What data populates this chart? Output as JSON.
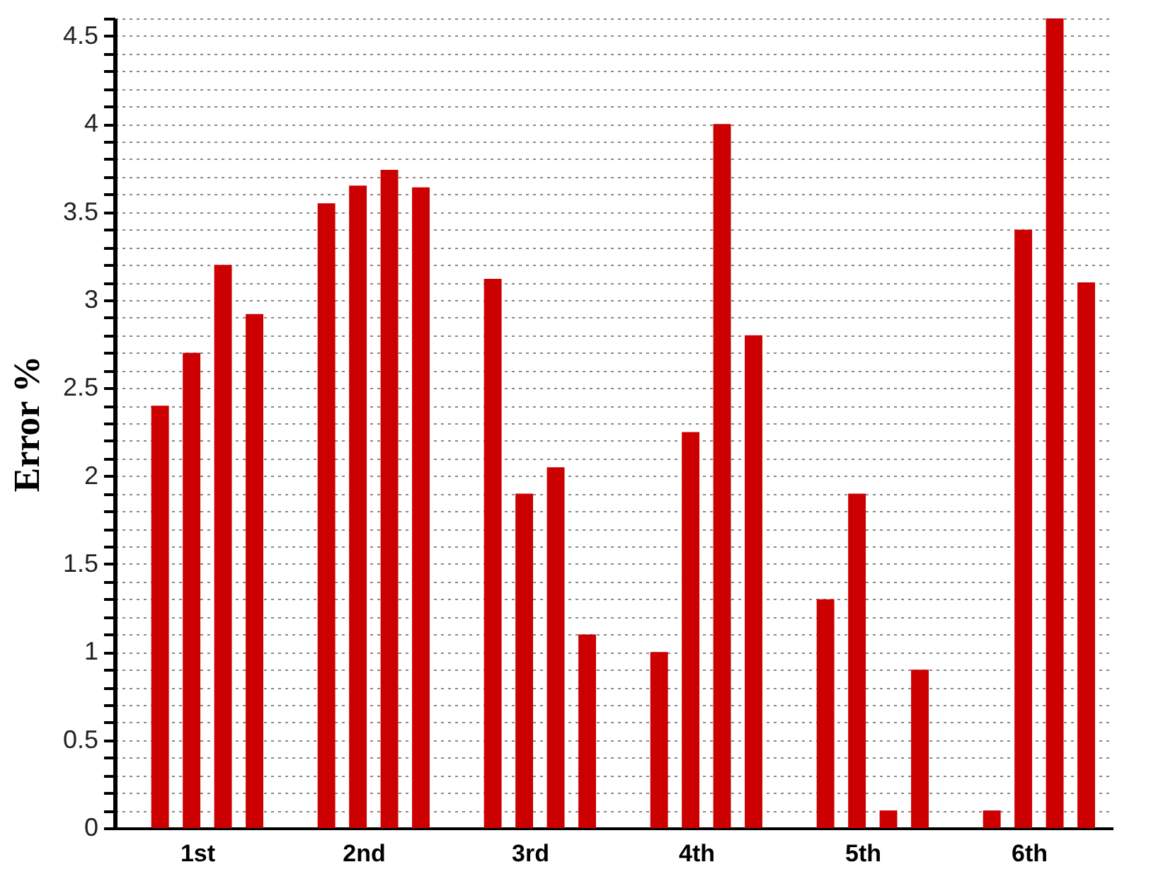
{
  "chart_data": {
    "type": "bar",
    "ylabel": "Error %",
    "categories": [
      "1st",
      "2nd",
      "3rd",
      "4th",
      "5th",
      "6th"
    ],
    "series": [
      {
        "color": "#cc0000",
        "values": [
          2.4,
          3.55,
          3.12,
          1.0,
          1.3,
          0.1
        ]
      },
      {
        "color": "#cc0000",
        "values": [
          2.7,
          3.65,
          1.9,
          2.25,
          1.9,
          3.4
        ]
      },
      {
        "color": "#cc0000",
        "values": [
          3.2,
          3.74,
          2.05,
          4.0,
          0.1,
          4.6
        ]
      },
      {
        "color": "#cc0000",
        "values": [
          2.92,
          3.64,
          1.1,
          2.8,
          0.9,
          3.1
        ]
      }
    ],
    "ylim": [
      0,
      4.6
    ],
    "yticks": [
      0,
      {
        "value": 0.1,
        "label": null
      },
      {
        "value": 0.2,
        "label": null
      },
      {
        "value": 0.3,
        "label": null
      },
      {
        "value": 0.4,
        "label": null
      },
      0.5,
      {
        "value": 0.6,
        "label": null
      },
      {
        "value": 0.7,
        "label": null
      },
      {
        "value": 0.8,
        "label": null
      },
      {
        "value": 0.9,
        "label": null
      },
      1,
      {
        "value": 1.1,
        "label": null
      },
      {
        "value": 1.2,
        "label": null
      },
      {
        "value": 1.3,
        "label": null
      },
      {
        "value": 1.4,
        "label": null
      },
      1.5,
      {
        "value": 1.6,
        "label": null
      },
      {
        "value": 1.7,
        "label": null
      },
      {
        "value": 1.8,
        "label": null
      },
      {
        "value": 1.9,
        "label": null
      },
      2,
      {
        "value": 2.1,
        "label": null
      },
      {
        "value": 2.2,
        "label": null
      },
      {
        "value": 2.3,
        "label": null
      },
      {
        "value": 2.4,
        "label": null
      },
      2.5,
      {
        "value": 2.6,
        "label": null
      },
      {
        "value": 2.7,
        "label": null
      },
      {
        "value": 2.8,
        "label": null
      },
      {
        "value": 2.9,
        "label": null
      },
      3,
      {
        "value": 3.1,
        "label": null
      },
      {
        "value": 3.2,
        "label": null
      },
      {
        "value": 3.3,
        "label": null
      },
      {
        "value": 3.4,
        "label": null
      },
      3.5,
      {
        "value": 3.6,
        "label": null
      },
      {
        "value": 3.7,
        "label": null
      },
      {
        "value": 3.8,
        "label": null
      },
      {
        "value": 3.9,
        "label": null
      },
      4,
      {
        "value": 4.1,
        "label": null
      },
      {
        "value": 4.2,
        "label": null
      },
      {
        "value": 4.3,
        "label": null
      },
      {
        "value": 4.4,
        "label": null
      },
      4.5,
      {
        "value": 4.6,
        "label": null
      }
    ],
    "grid": "y"
  }
}
